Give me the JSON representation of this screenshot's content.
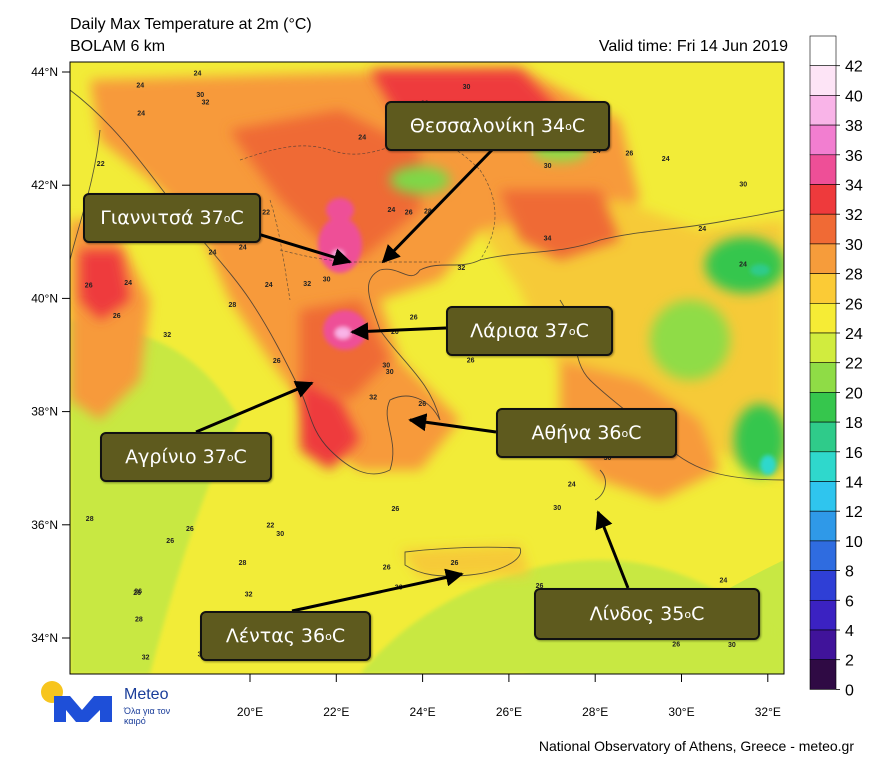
{
  "header": {
    "title": "Daily Max Temperature at 2m (°C)",
    "model": "BOLAM 6 km",
    "valid_time": "Valid time: Fri 14 Jun 2019"
  },
  "axes": {
    "lat_labels": [
      "44°N",
      "42°N",
      "40°N",
      "38°N",
      "36°N",
      "34°N"
    ],
    "lon_labels": [
      "20°E",
      "22°E",
      "24°E",
      "26°E",
      "28°E",
      "30°E",
      "32°E"
    ]
  },
  "colorbar": {
    "labels": [
      "42",
      "40",
      "38",
      "36",
      "34",
      "32",
      "30",
      "28",
      "26",
      "24",
      "22",
      "20",
      "18",
      "16",
      "14",
      "12",
      "10",
      "8",
      "6",
      "4",
      "2",
      "0"
    ],
    "colors": [
      "#ffffff",
      "#fde4f6",
      "#f9b4e8",
      "#f27ed0",
      "#ee4f97",
      "#ee3a3c",
      "#f06a35",
      "#f69c3b",
      "#fbcb36",
      "#f6ec35",
      "#d1ec3e",
      "#8fdc46",
      "#36c64d",
      "#2fcb8a",
      "#2fd8cc",
      "#2fc5ee",
      "#2f99e8",
      "#2f6ce0",
      "#2f3fd6",
      "#3b22c2",
      "#40139a",
      "#2f0a44"
    ]
  },
  "cities": [
    {
      "name": "Θεσσαλονίκη",
      "temp": "34",
      "unit": "C"
    },
    {
      "name": "Γιαννιτσά",
      "temp": "37",
      "unit": "C"
    },
    {
      "name": "Λάρισα",
      "temp": "37",
      "unit": "C"
    },
    {
      "name": "Αγρίνιο",
      "temp": "37",
      "unit": "C"
    },
    {
      "name": "Αθήνα",
      "temp": "36",
      "unit": "C"
    },
    {
      "name": "Λίνδος",
      "temp": "35",
      "unit": "C"
    },
    {
      "name": "Λέντας",
      "temp": "36",
      "unit": "C"
    }
  ],
  "logo": {
    "name": "Meteo",
    "tagline": "Όλα για τον καιρό"
  },
  "footer": "National Observatory of Athens, Greece - meteo.gr",
  "grid_values": [
    "26",
    "28",
    "30",
    "26",
    "28",
    "30",
    "32",
    "28",
    "30",
    "26",
    "32",
    "30",
    "32",
    "30",
    "32",
    "34",
    "30",
    "24",
    "32",
    "26",
    "30",
    "28",
    "32",
    "26",
    "28",
    "30",
    "32",
    "34",
    "26",
    "28",
    "24",
    "30",
    "26",
    "20",
    "22",
    "24",
    "22",
    "26",
    "24",
    "28",
    "30",
    "32",
    "28",
    "30",
    "24",
    "26",
    "28",
    "32",
    "30",
    "24",
    "26",
    "24",
    "22",
    "24",
    "26",
    "28",
    "30",
    "24",
    "26",
    "24",
    "30",
    "26",
    "24",
    "24",
    "26",
    "24",
    "22",
    "24",
    "26",
    "28",
    "26",
    "24",
    "24",
    "24",
    "26",
    "24",
    "24"
  ]
}
